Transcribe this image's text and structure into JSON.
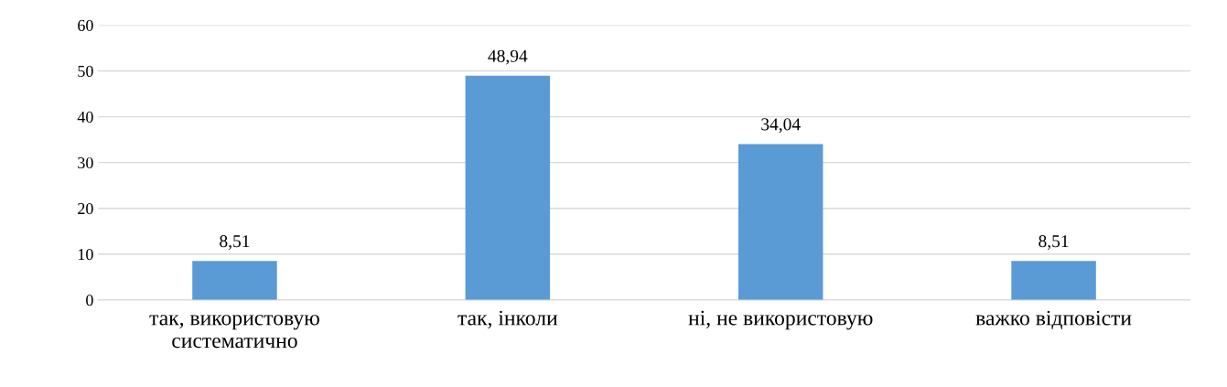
{
  "chart_data": {
    "type": "bar",
    "categories": [
      "так, використовую\nсистематично",
      "так, інколи",
      "ні, не використовую",
      "важко відповісти"
    ],
    "values": [
      8.51,
      48.94,
      34.04,
      8.51
    ],
    "value_labels": [
      "8,51",
      "48,94",
      "34,04",
      "8,51"
    ],
    "color": "#5b9bd5",
    "ylim": [
      0,
      60
    ],
    "yticks": [
      0,
      10,
      20,
      30,
      40,
      50,
      60
    ],
    "grid": "y",
    "legend": false
  }
}
